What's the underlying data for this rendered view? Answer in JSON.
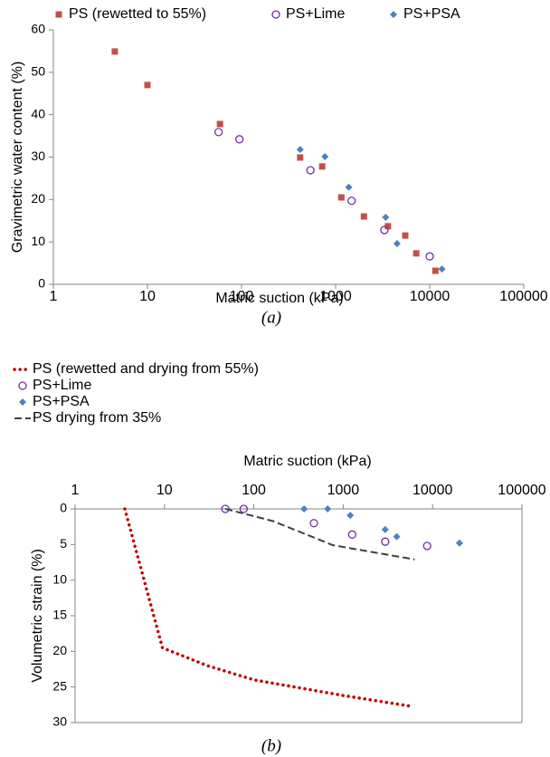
{
  "chart_data": [
    {
      "type": "scatter",
      "caption": "(a)",
      "x_label": "Matric suction (kPa)",
      "y_label": "Gravimetric water content (%)",
      "log_x": true,
      "xlim": [
        1,
        100000
      ],
      "xticks": [
        1,
        10,
        100,
        1000,
        10000,
        100000
      ],
      "ylim": [
        0,
        60
      ],
      "yticks": [
        0,
        10,
        20,
        30,
        40,
        50,
        60
      ],
      "x_axis_position": "bottom",
      "legend": "top",
      "series": [
        {
          "name": "PS (rewetted to 55%)",
          "color": "#c0504d",
          "marker": "square",
          "x": [
            4.5,
            10,
            59,
            420,
            720,
            1150,
            2000,
            3600,
            5500,
            7200,
            11500
          ],
          "values": [
            54.9,
            47,
            37.8,
            29.9,
            27.8,
            20.5,
            16,
            13.7,
            11.5,
            7.3,
            3.2
          ]
        },
        {
          "name": "PS+Lime",
          "color": "#7030a0",
          "marker": "circle",
          "x": [
            57,
            95,
            540,
            1480,
            3300,
            10000
          ],
          "values": [
            35.9,
            34.2,
            26.9,
            19.7,
            12.8,
            6.6
          ]
        },
        {
          "name": "PS+PSA",
          "color": "#4f81bd",
          "marker": "diamond",
          "x": [
            420,
            770,
            1380,
            3400,
            4500,
            13500
          ],
          "values": [
            31.8,
            30.1,
            22.9,
            15.8,
            9.6,
            3.6
          ]
        }
      ]
    },
    {
      "type": "scatter",
      "caption": "(b)",
      "x_label": "Matric suction (kPa)",
      "y_label": "Volumetric strain (%)",
      "log_x": true,
      "xlim": [
        1,
        100000
      ],
      "xticks": [
        1,
        10,
        100,
        1000,
        10000,
        100000
      ],
      "ylim": [
        0,
        30
      ],
      "yticks": [
        0,
        5,
        10,
        15,
        20,
        25,
        30
      ],
      "y_inverted": true,
      "x_axis_position": "top",
      "legend": "top-left",
      "series": [
        {
          "name": "PS (rewetted and drying from 55%)",
          "color": "#c00000",
          "marker": "dotted-line",
          "x": [
            3.6,
            9.5,
            30,
            100,
            1000,
            5700
          ],
          "values": [
            0,
            19.5,
            22,
            24,
            26.2,
            27.7
          ]
        },
        {
          "name": "PS+Lime",
          "color": "#7030a0",
          "marker": "circle",
          "x": [
            48,
            77,
            470,
            1260,
            2950,
            8700
          ],
          "values": [
            0,
            0,
            2,
            3.6,
            4.6,
            5.2
          ]
        },
        {
          "name": "PS+PSA",
          "color": "#4f81bd",
          "marker": "diamond",
          "x": [
            365,
            670,
            1200,
            2950,
            3970,
            20000
          ],
          "values": [
            0,
            0,
            0.9,
            2.9,
            3.9,
            4.8
          ]
        },
        {
          "name": "PS drying from 35%",
          "color": "#404040",
          "marker": "dashed-line",
          "x": [
            48,
            163,
            770,
            6300
          ],
          "values": [
            0,
            1.7,
            5.1,
            7.1
          ]
        }
      ]
    }
  ]
}
